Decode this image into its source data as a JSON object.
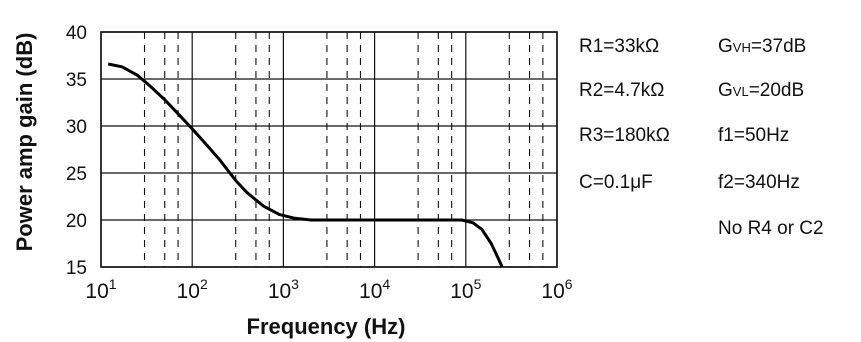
{
  "chart_data": {
    "type": "line",
    "xlabel": "Frequency (Hz)",
    "ylabel": "Power amp gain (dB)",
    "x_scale": "log",
    "xlim": [
      10,
      1000000
    ],
    "ylim": [
      15,
      40
    ],
    "grid": true,
    "x_ticks": [
      {
        "base": "10",
        "exp": "1"
      },
      {
        "base": "10",
        "exp": "2"
      },
      {
        "base": "10",
        "exp": "3"
      },
      {
        "base": "10",
        "exp": "4"
      },
      {
        "base": "10",
        "exp": "5"
      },
      {
        "base": "10",
        "exp": "6"
      }
    ],
    "y_ticks": [
      "15",
      "20",
      "25",
      "30",
      "35",
      "40"
    ],
    "series": [
      {
        "color": "#000000",
        "points": [
          {
            "x": 12,
            "y": 36.6
          },
          {
            "x": 17,
            "y": 36.3
          },
          {
            "x": 25,
            "y": 35.4
          },
          {
            "x": 35,
            "y": 34.2
          },
          {
            "x": 50,
            "y": 32.8
          },
          {
            "x": 70,
            "y": 31.3
          },
          {
            "x": 100,
            "y": 29.7
          },
          {
            "x": 150,
            "y": 27.8
          },
          {
            "x": 200,
            "y": 26.4
          },
          {
            "x": 300,
            "y": 24.2
          },
          {
            "x": 400,
            "y": 22.9
          },
          {
            "x": 600,
            "y": 21.5
          },
          {
            "x": 900,
            "y": 20.6
          },
          {
            "x": 1300,
            "y": 20.2
          },
          {
            "x": 2000,
            "y": 20.0
          },
          {
            "x": 10000,
            "y": 20.0
          },
          {
            "x": 50000,
            "y": 20.0
          },
          {
            "x": 90000,
            "y": 20.0
          },
          {
            "x": 120000,
            "y": 19.7
          },
          {
            "x": 150000,
            "y": 19.0
          },
          {
            "x": 190000,
            "y": 17.5
          },
          {
            "x": 230000,
            "y": 15.8
          },
          {
            "x": 250000,
            "y": 15.0
          }
        ]
      }
    ]
  },
  "parameters": {
    "left": [
      "R1=33kΩ",
      "R2=4.7kΩ",
      "R3=180kΩ",
      "C=0.1μF",
      "No R4  or C2"
    ],
    "right": [
      {
        "prefix": "G",
        "sub": "VH",
        "value": "=37dB"
      },
      {
        "prefix": "G",
        "sub": "VL",
        "value": "=20dB"
      },
      {
        "text": "f1=50Hz"
      },
      {
        "text": "f2=340Hz"
      }
    ]
  }
}
